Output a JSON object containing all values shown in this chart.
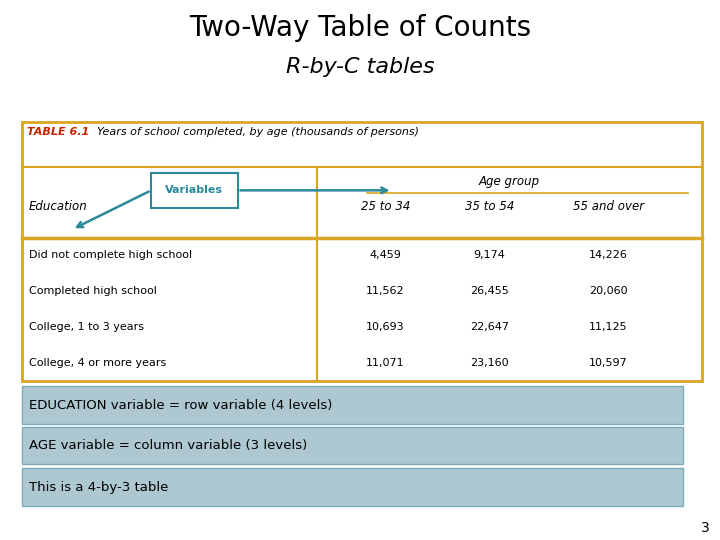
{
  "title_line1": "Two-Way Table of Counts",
  "title_line2": "R-by-C tables",
  "table_label": "TABLE 6.1",
  "table_caption": "  Years of school completed, by age (thousands of persons)",
  "col_header_left": "Education",
  "col_header_group": "Age group",
  "col_headers": [
    "25 to 34",
    "35 to 54",
    "55 and over"
  ],
  "row_labels": [
    "Did not complete high school",
    "Completed high school",
    "College, 1 to 3 years",
    "College, 4 or more years"
  ],
  "data": [
    [
      "4,459",
      "9,174",
      "14,226"
    ],
    [
      "11,562",
      "26,455",
      "20,060"
    ],
    [
      "10,693",
      "22,647",
      "11,125"
    ],
    [
      "11,071",
      "23,160",
      "10,597"
    ]
  ],
  "variables_label": "Variables",
  "bullet1": "EDUCATION variable = row variable (4 levels)",
  "bullet2": "AGE variable = column variable (3 levels)",
  "bullet3": "This is a 4-by-3 table",
  "table_border_color": "#DAA520",
  "bullet_bg_color": "#adc8d0",
  "table_header_color": "#2a8a9a",
  "table_6_1_color": "#cc2200",
  "slide_number": "3",
  "bg_color": "#ffffff",
  "underline_color": "#DAA520"
}
